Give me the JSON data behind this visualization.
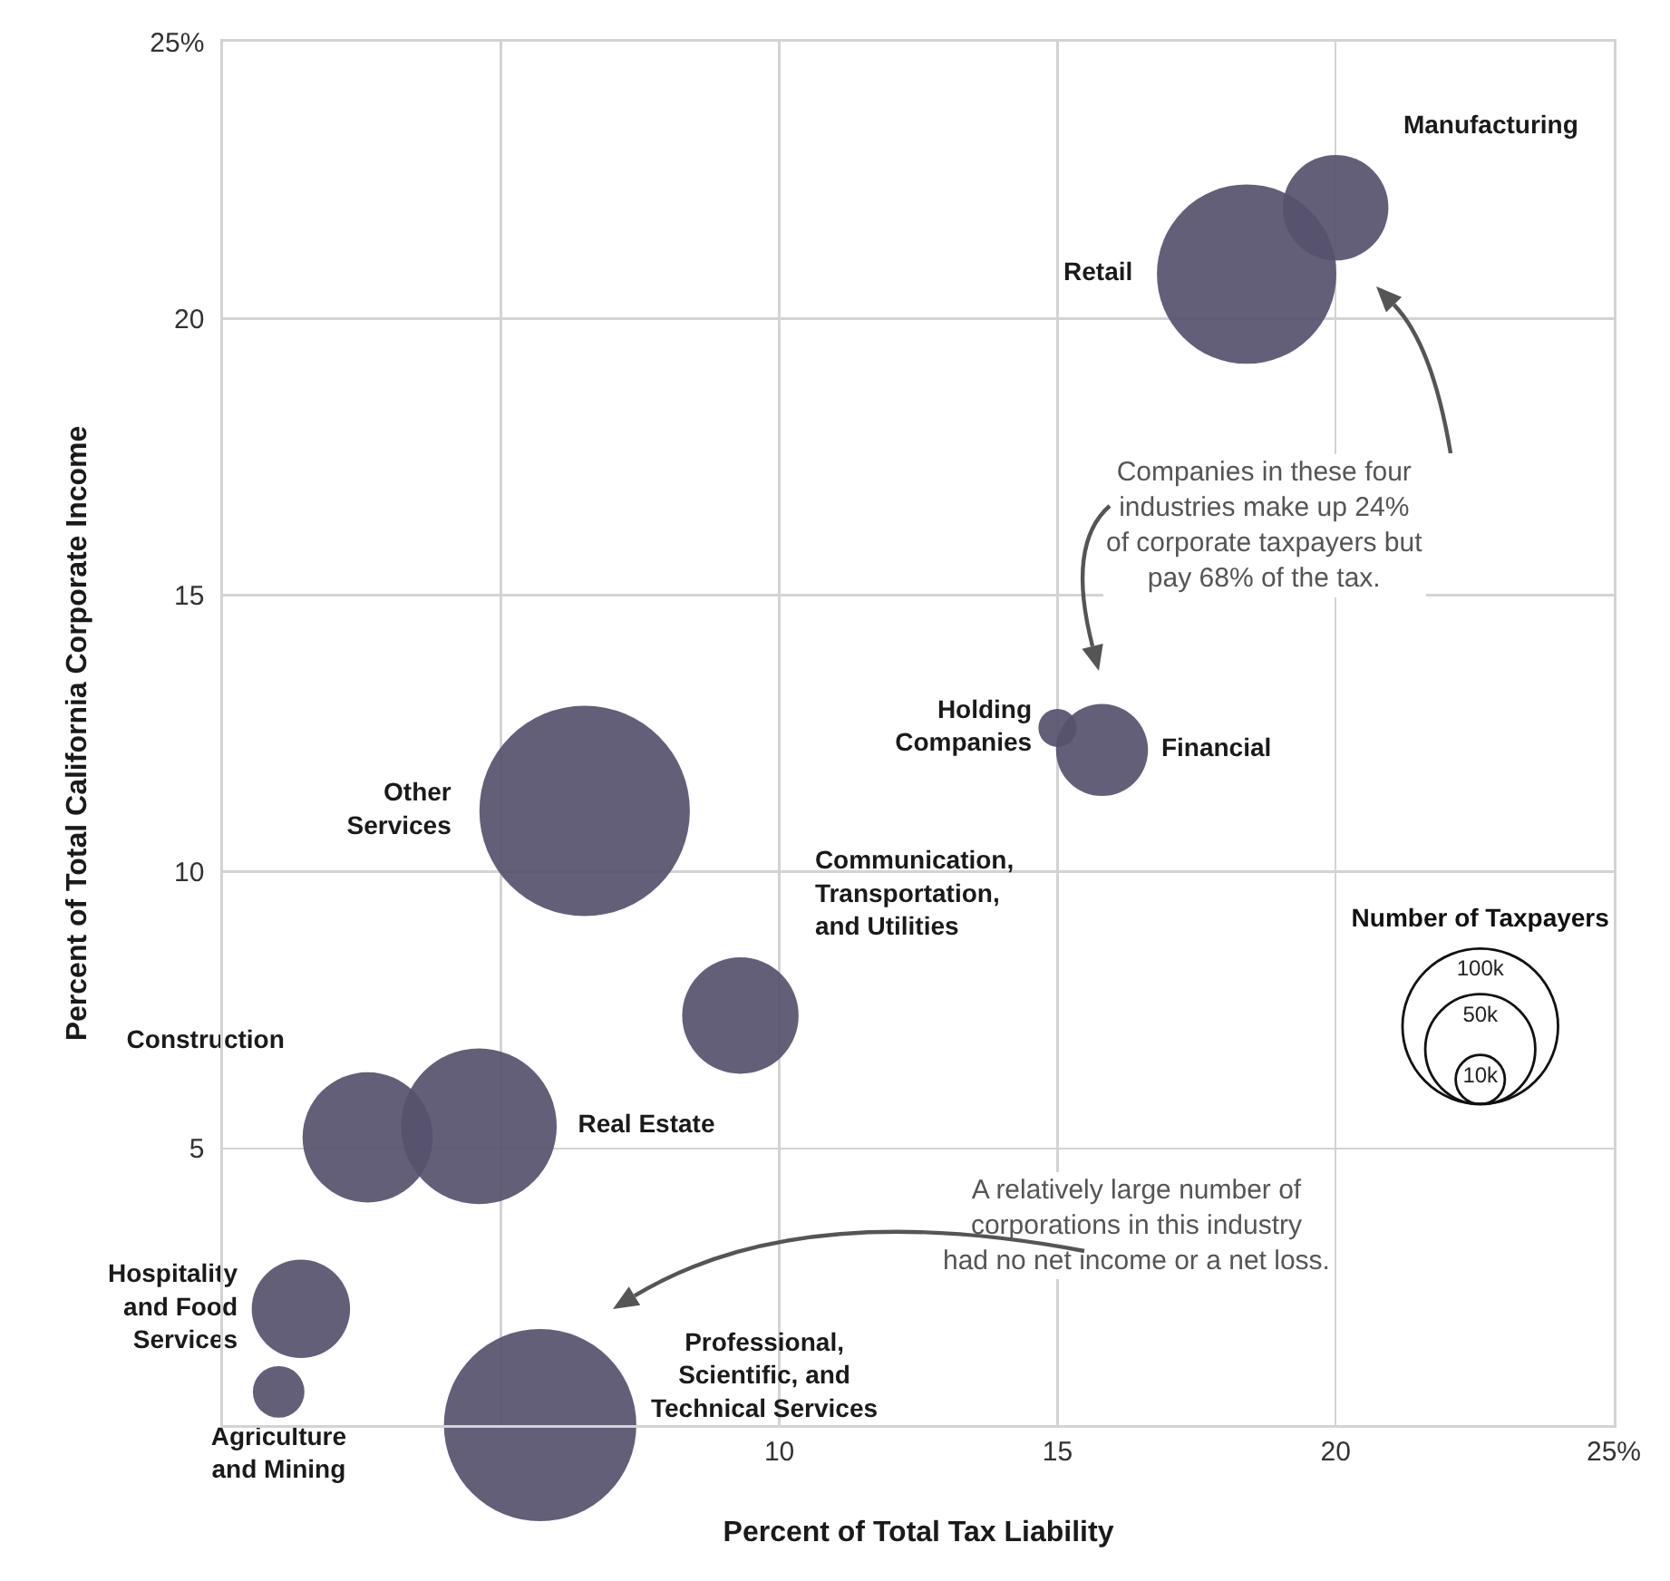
{
  "chart_data": {
    "type": "bubble",
    "xlabel": "Percent of Total Tax Liability",
    "ylabel": "Percent of Total California Corporate Income",
    "xlim": [
      0,
      25
    ],
    "ylim": [
      0,
      25
    ],
    "xticks": [
      {
        "value": 0,
        "label": null
      },
      {
        "value": 5,
        "label": null
      },
      10,
      15,
      20,
      {
        "value": 25,
        "label": "25%"
      }
    ],
    "yticks": [
      {
        "value": 0,
        "label": null
      },
      5,
      10,
      15,
      20,
      {
        "value": 25,
        "label": "25%"
      }
    ],
    "grid": true,
    "legend_title": "Number of Taxpayers",
    "size_legend": [
      {
        "value": 100,
        "label": "100k"
      },
      {
        "value": 50,
        "label": "50k"
      },
      {
        "value": 10,
        "label": "10k"
      }
    ],
    "series": [
      {
        "name": "Manufacturing",
        "color": "#56516e",
        "x": [
          20.0
        ],
        "values": [
          22.0
        ],
        "sizes": [
          46
        ]
      },
      {
        "name": "Retail",
        "color": "#56516e",
        "x": [
          18.4
        ],
        "values": [
          20.8
        ],
        "sizes": [
          133
        ]
      },
      {
        "name": "Holding Companies",
        "color": "#56516e",
        "x": [
          15.0
        ],
        "values": [
          12.6
        ],
        "sizes": [
          6
        ]
      },
      {
        "name": "Financial",
        "color": "#56516e",
        "x": [
          15.8
        ],
        "values": [
          12.2
        ],
        "sizes": [
          35
        ]
      },
      {
        "name": "Other Services",
        "color": "#56516e",
        "x": [
          6.5
        ],
        "values": [
          11.1
        ],
        "sizes": [
          183
        ]
      },
      {
        "name": "Communication, Transportation, and Utilities",
        "color": "#56516e",
        "x": [
          9.3
        ],
        "values": [
          7.4
        ],
        "sizes": [
          56
        ]
      },
      {
        "name": "Construction",
        "color": "#56516e",
        "x": [
          2.6
        ],
        "values": [
          5.2
        ],
        "sizes": [
          70
        ]
      },
      {
        "name": "Real Estate",
        "color": "#56516e",
        "x": [
          4.6
        ],
        "values": [
          5.4
        ],
        "sizes": [
          100
        ]
      },
      {
        "name": "Hospitality and Food Services",
        "color": "#56516e",
        "x": [
          1.4
        ],
        "values": [
          2.1
        ],
        "sizes": [
          40
        ]
      },
      {
        "name": "Agriculture and Mining",
        "color": "#56516e",
        "x": [
          1.0
        ],
        "values": [
          0.6
        ],
        "sizes": [
          11
        ]
      },
      {
        "name": "Professional, Scientific, and Technical Services",
        "color": "#56516e",
        "x": [
          5.7
        ],
        "values": [
          0
        ],
        "sizes": [
          153
        ]
      }
    ],
    "annotations": [
      "Companies in these four\nindustries make up 24%\nof corporate taxpayers but\npay 68% of the tax.",
      "A relatively large number of\ncorporations in this industry\nhad no net income or a net loss."
    ]
  }
}
